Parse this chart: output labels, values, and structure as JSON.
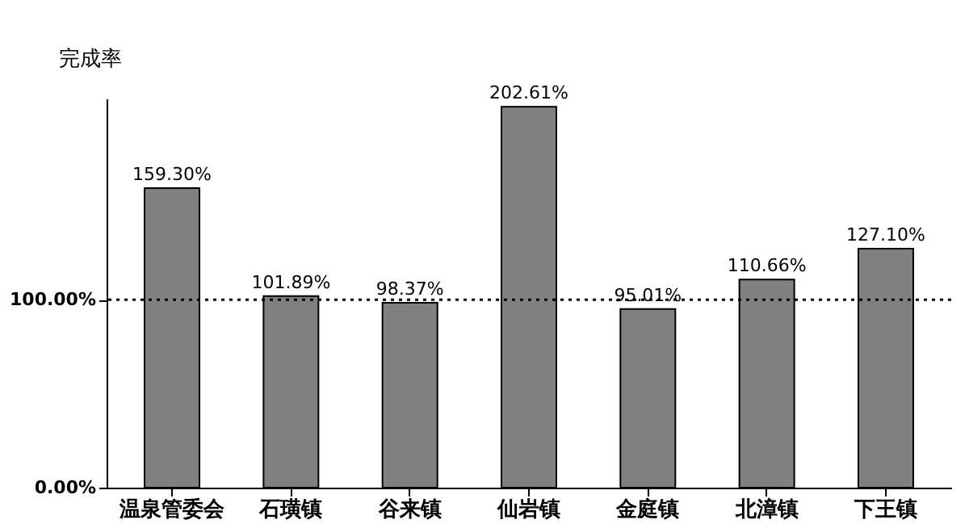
{
  "chart_data": {
    "type": "bar",
    "ylabel": "完成率",
    "categories": [
      "温泉管委会",
      "石璜镇",
      "谷来镇",
      "仙岩镇",
      "金庭镇",
      "北漳镇",
      "下王镇"
    ],
    "values": [
      159.3,
      101.89,
      98.37,
      202.61,
      95.01,
      110.66,
      127.1
    ],
    "value_labels": [
      "159.30%",
      "101.89%",
      "98.37%",
      "202.61%",
      "95.01%",
      "110.66%",
      "127.10%"
    ],
    "color": "#808080",
    "ylim": [
      0,
      207
    ],
    "yticks": [
      {
        "value": 0,
        "label": "0.00%"
      },
      {
        "value": 100,
        "label": "100.00%"
      }
    ],
    "ref_lines": [
      {
        "axis": "y",
        "value": 100,
        "line_style": "dotted",
        "color": "#000000"
      }
    ],
    "grid": false
  }
}
